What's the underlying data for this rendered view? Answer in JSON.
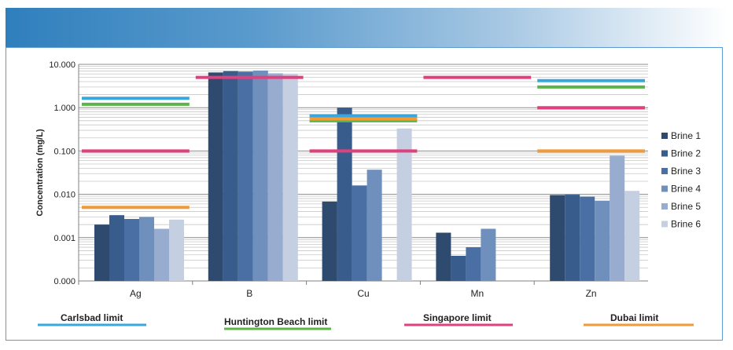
{
  "chart_data": {
    "type": "bar",
    "y_scale": "log",
    "ylabel": "Concentration (mg/L)",
    "ylim": [
      0.0001,
      10
    ],
    "y_ticks": [
      0.0001,
      0.001,
      0.01,
      0.1,
      1,
      10
    ],
    "y_tick_labels": [
      "0.000",
      "0.001",
      "0.010",
      "0.100",
      "1.000",
      "10.000"
    ],
    "grid": true,
    "legend_position": "right",
    "categories": [
      "Ag",
      "B",
      "Cu",
      "Mn",
      "Zn"
    ],
    "series": [
      {
        "name": "Brine 1",
        "color": "#2e4a6e",
        "values": [
          0.002,
          6.5,
          0.0068,
          0.0013,
          0.0096
        ]
      },
      {
        "name": "Brine 2",
        "color": "#385c8c",
        "values": [
          0.0033,
          7.0,
          1.0,
          0.00038,
          0.0098
        ]
      },
      {
        "name": "Brine 3",
        "color": "#4a6fa5",
        "values": [
          0.0027,
          6.8,
          0.016,
          0.0006,
          0.0088
        ]
      },
      {
        "name": "Brine 4",
        "color": "#6f8fbd",
        "values": [
          0.003,
          7.2,
          0.037,
          0.0016,
          0.0071
        ]
      },
      {
        "name": "Brine 5",
        "color": "#98acd0",
        "values": [
          0.0016,
          6.2,
          null,
          null,
          0.078
        ]
      },
      {
        "name": "Brine 6",
        "color": "#c4cfe2",
        "values": [
          0.0026,
          6.0,
          0.33,
          null,
          0.012
        ]
      }
    ],
    "limits": [
      {
        "name": "Carlsbad limit",
        "color": "#3aa7dc",
        "values": [
          1.65,
          null,
          0.65,
          null,
          4.2
        ]
      },
      {
        "name": "Huntington Beach limit",
        "color": "#5cb548",
        "values": [
          1.2,
          null,
          0.5,
          null,
          3.0
        ]
      },
      {
        "name": "Singapore limit",
        "color": "#e0407e",
        "values": [
          0.1,
          5.0,
          0.1,
          5.0,
          1.0
        ]
      },
      {
        "name": "Dubai limit",
        "color": "#f29a38",
        "values": [
          0.005,
          null,
          0.55,
          null,
          0.1
        ]
      }
    ]
  }
}
